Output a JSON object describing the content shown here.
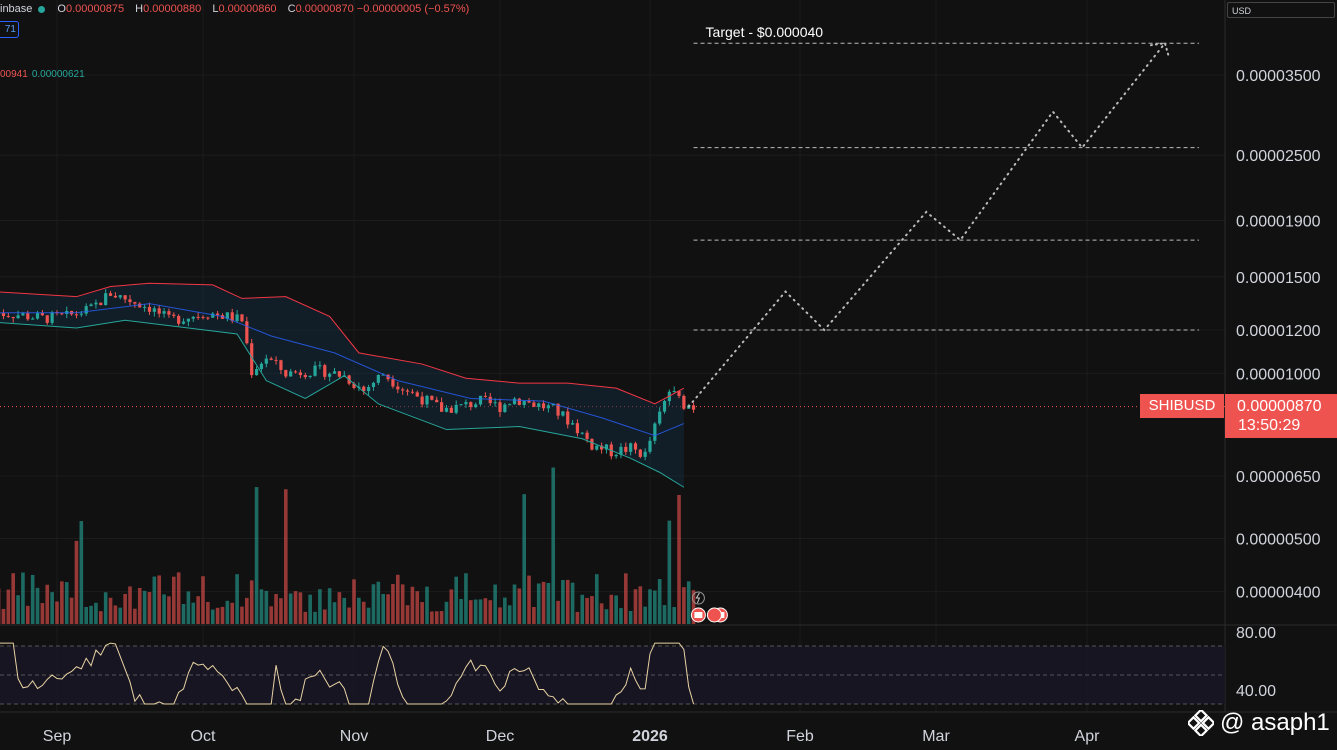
{
  "header": {
    "exchange_fragment": "inbase",
    "open_key": "O",
    "open": "0.00000875",
    "high_key": "H",
    "high": "0.00000880",
    "low_key": "L",
    "low": "0.00000860",
    "close_key": "C",
    "close": "0.00000870",
    "change": "−0.00000005 (−0.57%)",
    "indicator_badge": "71",
    "bb_upper": "00941",
    "bb_lower": "0.00000621"
  },
  "currency_box": "USD",
  "current_price": {
    "symbol": "SHIBUSD",
    "price": "0.00000870",
    "countdown": "13:50:29"
  },
  "target_label": "Target - $0.000040",
  "watermark": "@ asaph1",
  "colors": {
    "up": "#26a69a",
    "down": "#ef5350",
    "bb_line": "#f23645",
    "basis": "#2962ff",
    "rsi": "#e8d3a3",
    "bg": "#111111"
  },
  "chart_data": {
    "type": "line",
    "price_axis": {
      "scale": "log",
      "ticks": [
        {
          "value": 3.5e-05,
          "label": "0.00003500"
        },
        {
          "value": 2.5e-05,
          "label": "0.00002500"
        },
        {
          "value": 1.9e-05,
          "label": "0.00001900"
        },
        {
          "value": 1.5e-05,
          "label": "0.00001500"
        },
        {
          "value": 1.2e-05,
          "label": "0.00001200"
        },
        {
          "value": 1e-05,
          "label": "0.00001000"
        },
        {
          "value": 6.5e-06,
          "label": "0.00000650"
        },
        {
          "value": 5e-06,
          "label": "0.00000500"
        },
        {
          "value": 4e-06,
          "label": "0.00000400"
        }
      ]
    },
    "time_axis": {
      "ticks": [
        {
          "date": "2025-09-01",
          "label": "Sep"
        },
        {
          "date": "2025-10-01",
          "label": "Oct"
        },
        {
          "date": "2025-11-01",
          "label": "Nov"
        },
        {
          "date": "2025-12-01",
          "label": "Dec"
        },
        {
          "date": "2026-01-01",
          "label": "2026"
        },
        {
          "date": "2026-02-01",
          "label": "Feb"
        },
        {
          "date": "2026-03-01",
          "label": "Mar"
        },
        {
          "date": "2026-04-01",
          "label": "Apr"
        }
      ]
    },
    "close_series": [
      [
        "2025-08-19",
        1.29e-05
      ],
      [
        "2025-08-24",
        1.28e-05
      ],
      [
        "2025-08-29",
        1.26e-05
      ],
      [
        "2025-09-03",
        1.27e-05
      ],
      [
        "2025-09-08",
        1.31e-05
      ],
      [
        "2025-09-12",
        1.4e-05
      ],
      [
        "2025-09-16",
        1.36e-05
      ],
      [
        "2025-09-20",
        1.32e-05
      ],
      [
        "2025-09-24",
        1.25e-05
      ],
      [
        "2025-09-28",
        1.27e-05
      ],
      [
        "2025-10-02",
        1.29e-05
      ],
      [
        "2025-10-06",
        1.27e-05
      ],
      [
        "2025-10-09",
        1.25e-05
      ],
      [
        "2025-10-11",
        1.01e-05
      ],
      [
        "2025-10-14",
        1.07e-05
      ],
      [
        "2025-10-18",
        1e-05
      ],
      [
        "2025-10-22",
        1.01e-05
      ],
      [
        "2025-10-26",
        1.01e-05
      ],
      [
        "2025-10-30",
        9.9e-06
      ],
      [
        "2025-11-03",
        9.3e-06
      ],
      [
        "2025-11-07",
        1e-05
      ],
      [
        "2025-11-11",
        9.4e-06
      ],
      [
        "2025-11-15",
        9e-06
      ],
      [
        "2025-11-19",
        8.6e-06
      ],
      [
        "2025-11-23",
        8.7e-06
      ],
      [
        "2025-11-27",
        8.9e-06
      ],
      [
        "2025-12-01",
        8.7e-06
      ],
      [
        "2025-12-04",
        9e-06
      ],
      [
        "2025-12-08",
        8.8e-06
      ],
      [
        "2025-12-12",
        8.6e-06
      ],
      [
        "2025-12-16",
        8.1e-06
      ],
      [
        "2025-12-20",
        7.4e-06
      ],
      [
        "2025-12-24",
        7.2e-06
      ],
      [
        "2025-12-28",
        7.3e-06
      ],
      [
        "2025-12-31",
        7.1e-06
      ],
      [
        "2026-01-03",
        8.4e-06
      ],
      [
        "2026-01-05",
        9.3e-06
      ],
      [
        "2026-01-08",
        8.8e-06
      ],
      [
        "2026-01-10",
        8.7e-06
      ]
    ],
    "bollinger": {
      "upper": [
        [
          "2025-08-19",
          1.41e-05
        ],
        [
          "2025-09-05",
          1.38e-05
        ],
        [
          "2025-09-12",
          1.44e-05
        ],
        [
          "2025-09-20",
          1.46e-05
        ],
        [
          "2025-10-03",
          1.45e-05
        ],
        [
          "2025-10-09",
          1.37e-05
        ],
        [
          "2025-10-18",
          1.38e-05
        ],
        [
          "2025-10-27",
          1.27e-05
        ],
        [
          "2025-11-02",
          1.09e-05
        ],
        [
          "2025-11-15",
          1.04e-05
        ],
        [
          "2025-11-24",
          9.8e-06
        ],
        [
          "2025-12-05",
          9.6e-06
        ],
        [
          "2025-12-15",
          9.6e-06
        ],
        [
          "2025-12-25",
          9.4e-06
        ],
        [
          "2026-01-02",
          8.8e-06
        ],
        [
          "2026-01-08",
          9.4e-06
        ]
      ],
      "basis": [
        [
          "2025-08-19",
          1.29e-05
        ],
        [
          "2025-09-05",
          1.29e-05
        ],
        [
          "2025-09-20",
          1.34e-05
        ],
        [
          "2025-10-05",
          1.27e-05
        ],
        [
          "2025-10-15",
          1.17e-05
        ],
        [
          "2025-10-28",
          1.09e-05
        ],
        [
          "2025-11-10",
          9.7e-06
        ],
        [
          "2025-11-25",
          9e-06
        ],
        [
          "2025-12-10",
          8.9e-06
        ],
        [
          "2025-12-22",
          8.3e-06
        ],
        [
          "2026-01-02",
          7.7e-06
        ],
        [
          "2026-01-08",
          8.1e-06
        ]
      ],
      "lower": [
        [
          "2025-08-19",
          1.24e-05
        ],
        [
          "2025-09-05",
          1.21e-05
        ],
        [
          "2025-09-15",
          1.25e-05
        ],
        [
          "2025-09-28",
          1.21e-05
        ],
        [
          "2025-10-08",
          1.18e-05
        ],
        [
          "2025-10-14",
          9.7e-06
        ],
        [
          "2025-10-22",
          9e-06
        ],
        [
          "2025-10-30",
          9.9e-06
        ],
        [
          "2025-11-06",
          8.8e-06
        ],
        [
          "2025-11-20",
          7.9e-06
        ],
        [
          "2025-12-05",
          8e-06
        ],
        [
          "2025-12-18",
          7.6e-06
        ],
        [
          "2025-12-28",
          7e-06
        ],
        [
          "2026-01-03",
          6.6e-06
        ],
        [
          "2026-01-08",
          6.2e-06
        ]
      ]
    },
    "projection": [
      [
        "2026-01-09",
        8.7e-06
      ],
      [
        "2026-01-29",
        1.41e-05
      ],
      [
        "2026-02-06",
        1.2e-05
      ],
      [
        "2026-02-27",
        1.97e-05
      ],
      [
        "2026-03-06",
        1.75e-05
      ],
      [
        "2026-03-25",
        3e-05
      ],
      [
        "2026-03-31",
        2.58e-05
      ],
      [
        "2026-04-17",
        4e-05
      ]
    ],
    "target_levels": [
      4e-05,
      2.58e-05,
      1.75e-05,
      1.2e-05
    ],
    "volume_panel": {
      "max_marker": "tallest bars near Sep and Oct 10; spike early Jan"
    },
    "rsi": {
      "ticks": [
        {
          "value": 80,
          "label": "80.00"
        },
        {
          "value": 40,
          "label": "40.00"
        }
      ],
      "band": [
        30,
        70
      ]
    }
  }
}
